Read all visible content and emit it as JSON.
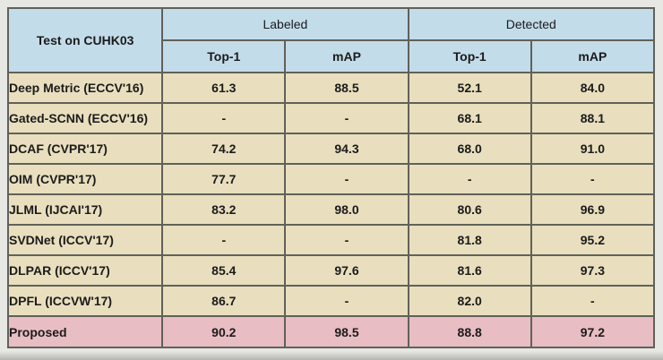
{
  "chart_data": {
    "type": "table",
    "title": "Test on CUHK03",
    "corner_header": "Test on CUHK03",
    "column_groups": [
      {
        "label": "Labeled",
        "columns": [
          "Top-1",
          "mAP"
        ]
      },
      {
        "label": "Detected",
        "columns": [
          "Top-1",
          "mAP"
        ]
      }
    ],
    "rows": [
      {
        "method": "Deep Metric (ECCV'16)",
        "labeled_top1": "61.3",
        "labeled_map": "88.5",
        "detected_top1": "52.1",
        "detected_map": "84.0"
      },
      {
        "method": "Gated-SCNN (ECCV'16)",
        "labeled_top1": "-",
        "labeled_map": "-",
        "detected_top1": "68.1",
        "detected_map": "88.1"
      },
      {
        "method": "DCAF (CVPR'17)",
        "labeled_top1": "74.2",
        "labeled_map": "94.3",
        "detected_top1": "68.0",
        "detected_map": "91.0"
      },
      {
        "method": "OIM (CVPR'17)",
        "labeled_top1": "77.7",
        "labeled_map": "-",
        "detected_top1": "-",
        "detected_map": "-"
      },
      {
        "method": "JLML (IJCAI'17)",
        "labeled_top1": "83.2",
        "labeled_map": "98.0",
        "detected_top1": "80.6",
        "detected_map": "96.9"
      },
      {
        "method": "SVDNet (ICCV'17)",
        "labeled_top1": "-",
        "labeled_map": "-",
        "detected_top1": "81.8",
        "detected_map": "95.2"
      },
      {
        "method": "DLPAR (ICCV'17)",
        "labeled_top1": "85.4",
        "labeled_map": "97.6",
        "detected_top1": "81.6",
        "detected_map": "97.3"
      },
      {
        "method": "DPFL (ICCVW'17)",
        "labeled_top1": "86.7",
        "labeled_map": "-",
        "detected_top1": "82.0",
        "detected_map": "-"
      },
      {
        "method": "Proposed",
        "labeled_top1": "90.2",
        "labeled_map": "98.5",
        "detected_top1": "88.8",
        "detected_map": "97.2",
        "highlighted": true
      }
    ],
    "colors": {
      "header_bg": "#c3dcea",
      "body_bg": "#e9dfbe",
      "highlight_bg": "#e8bdc3",
      "border": "#60615a",
      "page_bg": "#e7e7e4",
      "text": "#1b1b1b"
    }
  }
}
